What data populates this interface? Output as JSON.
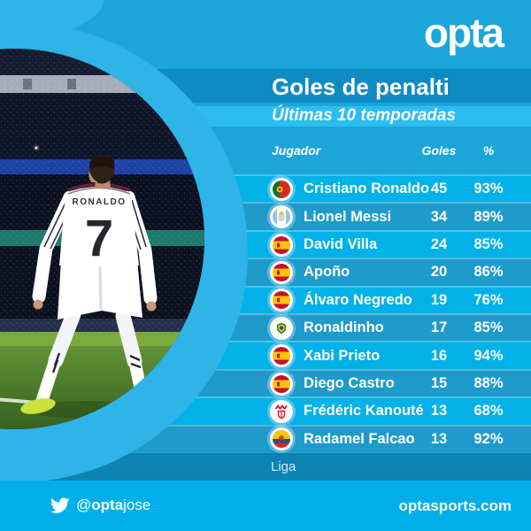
{
  "brand": {
    "logo": "opta",
    "website": "optasports.com",
    "twitter": {
      "at": "@",
      "bold": "opta",
      "rest": "jose"
    }
  },
  "header": {
    "title": "Goles de penalti",
    "subtitle": "Últimas 10 temporadas"
  },
  "table": {
    "columns": [
      {
        "key": "player",
        "label": "Jugador"
      },
      {
        "key": "goals",
        "label": "Goles"
      },
      {
        "key": "pct",
        "label": "%"
      }
    ],
    "rows": [
      {
        "player": "Cristiano Ronaldo",
        "goals": "45",
        "pct": "93%",
        "icon": "portugal-flag"
      },
      {
        "player": "Lionel Messi",
        "goals": "34",
        "pct": "89%",
        "icon": "argentina-crest"
      },
      {
        "player": "David Villa",
        "goals": "24",
        "pct": "85%",
        "icon": "spain-flag"
      },
      {
        "player": "Apoño",
        "goals": "20",
        "pct": "86%",
        "icon": "spain-flag"
      },
      {
        "player": "Álvaro Negredo",
        "goals": "19",
        "pct": "76%",
        "icon": "spain-flag"
      },
      {
        "player": "Ronaldinho",
        "goals": "17",
        "pct": "85%",
        "icon": "brazil-crest"
      },
      {
        "player": "Xabi Prieto",
        "goals": "16",
        "pct": "94%",
        "icon": "spain-flag"
      },
      {
        "player": "Diego Castro",
        "goals": "15",
        "pct": "88%",
        "icon": "spain-flag"
      },
      {
        "player": "Frédéric Kanouté",
        "goals": "13",
        "pct": "68%",
        "icon": "sevilla-crest"
      },
      {
        "player": "Radamel Falcao",
        "goals": "13",
        "pct": "92%",
        "icon": "colombia-crest"
      }
    ],
    "footnote": "Liga"
  },
  "photo": {
    "jersey_name": "RONALDO",
    "jersey_number": "7",
    "description": "Cristiano Ronaldo from behind in white Real Madrid kit, celebrating in a night stadium"
  },
  "colors": {
    "background": "#1ca5d8",
    "accent_light_ring": "#2eb4e6",
    "band_title": "#0e8bc2",
    "band_subtitle": "#2cbdf0",
    "row_bright": "#01b1e7",
    "row_dark": "#1e9bcb",
    "band_liga": "#0d83b3",
    "footer": "#00afe9",
    "text": "#ffffff"
  },
  "chart_data": {
    "type": "table",
    "title": "Goles de penalti",
    "subtitle": "Últimas 10 temporadas",
    "columns": [
      "Jugador",
      "Goles",
      "%"
    ],
    "rows": [
      [
        "Cristiano Ronaldo",
        45,
        "93%"
      ],
      [
        "Lionel Messi",
        34,
        "89%"
      ],
      [
        "David Villa",
        24,
        "85%"
      ],
      [
        "Apoño",
        20,
        "86%"
      ],
      [
        "Álvaro Negredo",
        19,
        "76%"
      ],
      [
        "Ronaldinho",
        17,
        "85%"
      ],
      [
        "Xabi Prieto",
        16,
        "94%"
      ],
      [
        "Diego Castro",
        15,
        "88%"
      ],
      [
        "Frédéric Kanouté",
        13,
        "68%"
      ],
      [
        "Radamel Falcao",
        13,
        "92%"
      ]
    ],
    "footnote": "Liga",
    "legend_position": "none",
    "grid": false
  }
}
